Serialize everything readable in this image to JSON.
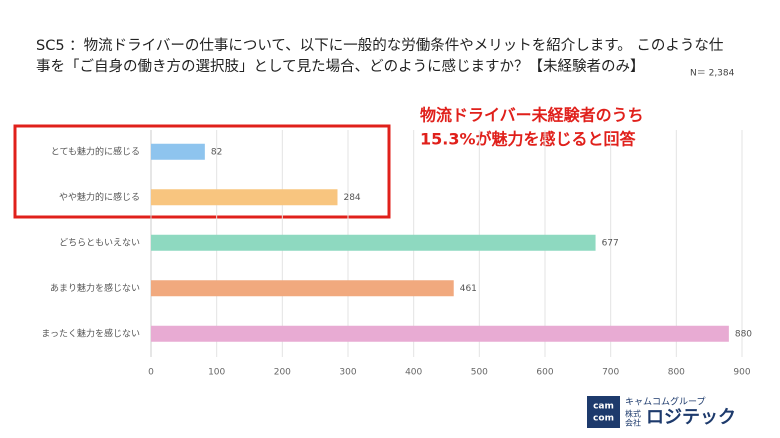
{
  "chart_data": {
    "type": "bar",
    "orientation": "horizontal",
    "title": [
      "SC5 ：物流ドライバーの仕事について、以下に一般的な労働条件やメリットを紹介します。 このような仕",
      "事を「ご自身の働き方の選択肢」として見た場合、どのように感じますか？【未経験者のみ】"
    ],
    "subtitle": "N＝ 2,384",
    "annotation": [
      "物流ドライバー未経験者のうち",
      "15.3%が魅力を感じると回答"
    ],
    "categories": [
      "とても魅力的に感じる",
      "やや魅力的に感じる",
      "どちらともいえない",
      "あまり魅力を感じない",
      "まったく魅力を感じない"
    ],
    "values": [
      82,
      284,
      677,
      461,
      880
    ],
    "colors": [
      "#8ec4ee",
      "#f8c57f",
      "#8ed9c0",
      "#f1a97e",
      "#e8abd3"
    ],
    "xlim": [
      0,
      900
    ],
    "xticks": [
      0,
      100,
      200,
      300,
      400,
      500,
      600,
      700,
      800,
      900
    ],
    "grid": true
  },
  "logo": {
    "icon": [
      "cam",
      "com"
    ],
    "group": "キャムコムグループ",
    "company_type": [
      "株式",
      "会社"
    ],
    "name": "ロジテック"
  }
}
